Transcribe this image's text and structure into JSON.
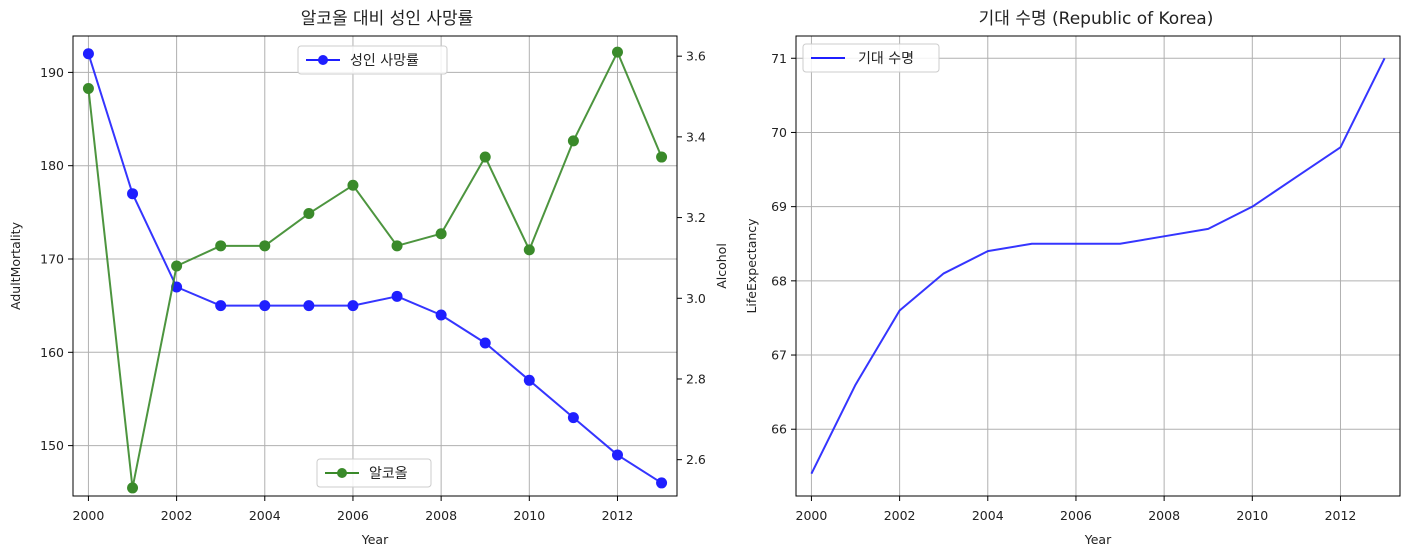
{
  "chart_data": [
    {
      "type": "line",
      "title": "알코올 대비 성인 사망률",
      "xlabel": "Year",
      "ylabel": "AdultMortality",
      "y2label": "Alcohol",
      "x": [
        2000,
        2001,
        2002,
        2003,
        2004,
        2005,
        2006,
        2007,
        2008,
        2009,
        2010,
        2011,
        2012,
        2013
      ],
      "xlim": [
        1999.65,
        2013.35
      ],
      "xticks": [
        "2000",
        "2002",
        "2004",
        "2006",
        "2008",
        "2010",
        "2012"
      ],
      "ylim": [
        144.6,
        193.9
      ],
      "yticks": [
        "150",
        "160",
        "170",
        "180",
        "190"
      ],
      "y2lim": [
        2.51,
        3.65
      ],
      "y2ticks": [
        "2.6",
        "2.8",
        "3.0",
        "3.2",
        "3.4",
        "3.6"
      ],
      "grid": true,
      "series": [
        {
          "name": "성인 사망률",
          "axis": "left",
          "color": "#1f1fff",
          "marker": "circle",
          "values": [
            192,
            177,
            167,
            165,
            165,
            165,
            165,
            166,
            164,
            161,
            157,
            153,
            149,
            146
          ],
          "legend": "upper center"
        },
        {
          "name": "알코올",
          "axis": "right",
          "color": "#3a8a2a",
          "marker": "circle",
          "values": [
            3.52,
            2.53,
            3.08,
            3.13,
            3.13,
            3.21,
            3.28,
            3.13,
            3.16,
            3.35,
            3.12,
            3.39,
            3.61,
            3.35
          ],
          "legend": "lower center"
        }
      ]
    },
    {
      "type": "line",
      "title": "기대 수명 (Republic of Korea)",
      "xlabel": "Year",
      "ylabel": "LifeExpectancy",
      "x": [
        2000,
        2001,
        2002,
        2003,
        2004,
        2005,
        2006,
        2007,
        2008,
        2009,
        2010,
        2011,
        2012,
        2013
      ],
      "xlim": [
        1999.65,
        2013.35
      ],
      "xticks": [
        "2000",
        "2002",
        "2004",
        "2006",
        "2008",
        "2010",
        "2012"
      ],
      "ylim": [
        65.1,
        71.3
      ],
      "yticks": [
        "66",
        "67",
        "68",
        "69",
        "70",
        "71"
      ],
      "grid": true,
      "series": [
        {
          "name": "기대 수명",
          "axis": "left",
          "color": "#1f1fff",
          "marker": "none",
          "values": [
            65.4,
            66.6,
            67.6,
            68.1,
            68.4,
            68.5,
            68.5,
            68.5,
            68.6,
            68.7,
            69.0,
            69.4,
            69.8,
            71.0
          ],
          "legend": "upper left"
        }
      ]
    }
  ]
}
